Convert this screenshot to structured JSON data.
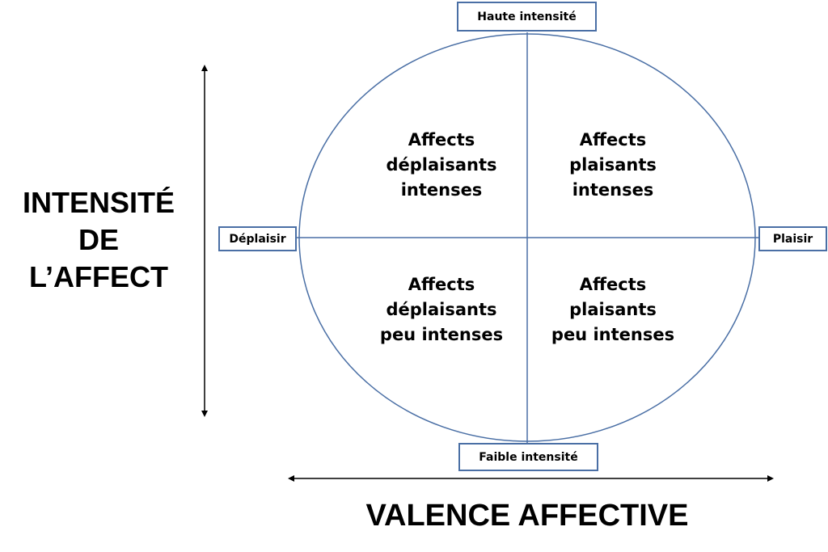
{
  "poles": {
    "top": "Haute intensité",
    "bottom": "Faible intensité",
    "left": "Déplaisir",
    "right": "Plaisir"
  },
  "quadrants": {
    "top_left": [
      "Affects",
      "déplaisants",
      "intenses"
    ],
    "top_right": [
      "Affects",
      "plaisants",
      "intenses"
    ],
    "bottom_left": [
      "Affects",
      "déplaisants",
      "peu intenses"
    ],
    "bottom_right": [
      "Affects",
      "plaisants",
      "peu intenses"
    ]
  },
  "axes": {
    "vertical_title": [
      "INTENSITÉ",
      "DE",
      "L’AFFECT"
    ],
    "horizontal_title": "VALENCE AFFECTIVE"
  },
  "colors": {
    "line": "#4a6fa5",
    "box_border": "#4a6fa5",
    "arrow": "#000000",
    "text": "#000000"
  }
}
